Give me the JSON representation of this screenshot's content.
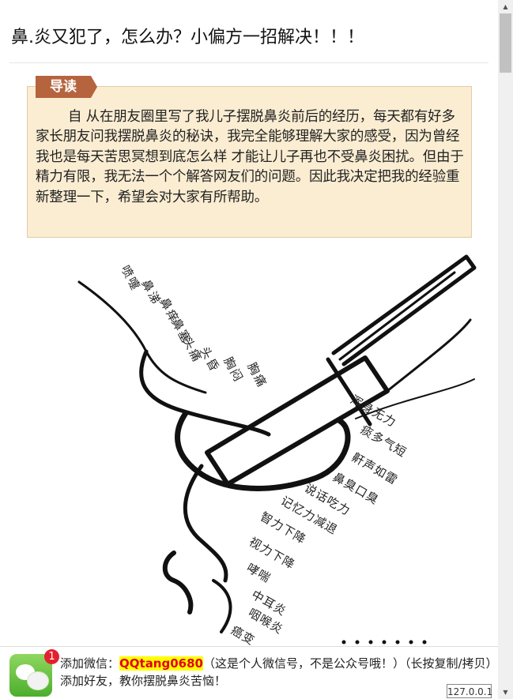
{
  "article": {
    "title": "鼻.炎又犯了，怎么办？小偏方一招解决！！！",
    "intro_tag": "导读",
    "intro_text": "自 从在朋友圈里写了我儿子摆脱鼻炎前后的经历，每天都有好多家长朋友问我摆脱鼻炎的秘诀，我完全能够理解大家的感受，因为曾经我也是每天苦思冥想到底怎么样 才能让儿子再也不受鼻炎困扰。但由于精力有限，我无法一个个解答网友们的问题。因此我决定把我的经验重新整理一下，希望会对大家有所帮助。"
  },
  "illustration": {
    "symptoms_upper": [
      "喷嚏",
      "鼻涕",
      "鼻痒",
      "鼻塞",
      "头痛",
      "头昏",
      "胸闷",
      "胸痛"
    ],
    "symptoms_lower": [
      "浑身无力",
      "痰多气短",
      "鼾声如雷",
      "鼻臭口臭",
      "说话吃力",
      "记忆力减退",
      "智力下降",
      "视力下降",
      "哮喘",
      "中耳炎",
      "咽喉炎",
      "癌变"
    ]
  },
  "wechat": {
    "badge_count": "1",
    "prefix": "添加微信：",
    "id": "QQtang0680",
    "suffix": "（这是个人微信号，不是公众号哦！）（长按复制/拷贝）添加好友，教你摆脱鼻炎苦恼！"
  },
  "status": {
    "host": "127.0.0.1"
  },
  "icons": {
    "wechat": "wechat-icon",
    "scroll_up": "scroll-up-arrow-icon",
    "scroll_down": "scroll-down-arrow-icon"
  },
  "colors": {
    "intro_tag": "#b5643e",
    "intro_box": "#fbedd2",
    "wechat_id_highlight": "#ffff00",
    "wechat_id_text": "#e0001b",
    "badge": "#e3202e"
  }
}
